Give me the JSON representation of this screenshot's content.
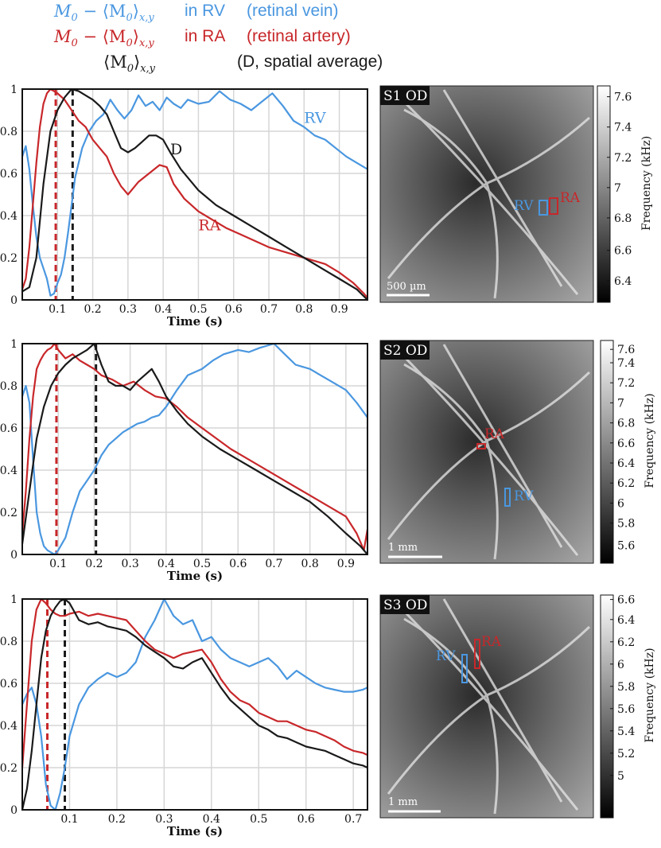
{
  "legend": {
    "rows": [
      {
        "formula_m": "M",
        "formula_sub0": "0",
        "formula_mid": " − ⟨M",
        "formula_sub1": "0",
        "formula_close": "⟩",
        "formula_sub2": "x,y",
        "location": "in RV",
        "desc": "(retinal vein)",
        "color": "#4a97e0"
      },
      {
        "formula_m": "M",
        "formula_sub0": "0",
        "formula_mid": " − ⟨M",
        "formula_sub1": "0",
        "formula_close": "⟩",
        "formula_sub2": "x,y",
        "location": "in RA",
        "desc": "(retinal artery)",
        "color": "#c8272a"
      },
      {
        "formula_m": "",
        "formula_sub0": "",
        "formula_mid": "⟨M",
        "formula_sub1": "0",
        "formula_close": "⟩",
        "formula_sub2": "x,y",
        "location": "",
        "desc": "(D, spatial average)",
        "color": "#1a1a1a"
      }
    ]
  },
  "colors": {
    "vein": "#4a97e0",
    "artery": "#c8272a",
    "average": "#1a1a1a"
  },
  "chart_data": [
    {
      "type": "line",
      "xlabel": "Time (s)",
      "xlim": [
        0,
        0.98
      ],
      "ylim": [
        0,
        1
      ],
      "xticks": [
        "0.1",
        "0.2",
        "0.3",
        "0.4",
        "0.5",
        "0.6",
        "0.7",
        "0.8",
        "0.9"
      ],
      "xtick_values": [
        0.1,
        0.2,
        0.3,
        0.4,
        0.5,
        0.6,
        0.7,
        0.8,
        0.9
      ],
      "yticks": [
        "0",
        "0.2",
        "0.4",
        "0.6",
        "0.8",
        "1"
      ],
      "ytick_values": [
        0,
        0.2,
        0.4,
        0.6,
        0.8,
        1
      ],
      "grid": true,
      "vlines": [
        {
          "x": 0.095,
          "color": "artery"
        },
        {
          "x": 0.143,
          "color": "average"
        }
      ],
      "series": [
        {
          "key": "RV",
          "name": "RV",
          "color": "vein",
          "label_at": [
            0.8,
            0.84
          ],
          "x": [
            0,
            0.01,
            0.02,
            0.03,
            0.04,
            0.05,
            0.06,
            0.07,
            0.08,
            0.09,
            0.1,
            0.11,
            0.12,
            0.13,
            0.14,
            0.15,
            0.17,
            0.19,
            0.21,
            0.23,
            0.25,
            0.27,
            0.29,
            0.31,
            0.33,
            0.35,
            0.37,
            0.39,
            0.41,
            0.43,
            0.45,
            0.47,
            0.5,
            0.53,
            0.56,
            0.59,
            0.62,
            0.65,
            0.68,
            0.71,
            0.74,
            0.77,
            0.8,
            0.83,
            0.86,
            0.89,
            0.92,
            0.95,
            0.98
          ],
          "y": [
            0.68,
            0.73,
            0.62,
            0.45,
            0.3,
            0.2,
            0.15,
            0.1,
            0.02,
            0.03,
            0.08,
            0.12,
            0.2,
            0.32,
            0.45,
            0.58,
            0.72,
            0.8,
            0.85,
            0.88,
            0.95,
            0.9,
            0.86,
            0.9,
            0.97,
            0.92,
            0.94,
            0.9,
            0.96,
            0.93,
            0.91,
            0.95,
            0.93,
            0.94,
            0.99,
            0.95,
            0.93,
            0.9,
            0.94,
            0.98,
            0.92,
            0.85,
            0.82,
            0.78,
            0.76,
            0.72,
            0.68,
            0.65,
            0.62
          ]
        },
        {
          "key": "RA",
          "name": "RA",
          "color": "artery",
          "label_at": [
            0.5,
            0.33
          ],
          "x": [
            0,
            0.01,
            0.02,
            0.03,
            0.04,
            0.05,
            0.06,
            0.07,
            0.08,
            0.09,
            0.1,
            0.12,
            0.14,
            0.16,
            0.18,
            0.2,
            0.22,
            0.24,
            0.26,
            0.28,
            0.3,
            0.33,
            0.36,
            0.39,
            0.41,
            0.43,
            0.46,
            0.5,
            0.54,
            0.58,
            0.62,
            0.66,
            0.7,
            0.74,
            0.78,
            0.82,
            0.86,
            0.9,
            0.94,
            0.97,
            0.98
          ],
          "y": [
            0.05,
            0.1,
            0.25,
            0.45,
            0.65,
            0.82,
            0.93,
            0.98,
            1.0,
            0.99,
            0.98,
            0.95,
            0.9,
            0.85,
            0.82,
            0.76,
            0.72,
            0.68,
            0.6,
            0.54,
            0.5,
            0.56,
            0.6,
            0.64,
            0.63,
            0.55,
            0.48,
            0.42,
            0.38,
            0.34,
            0.31,
            0.28,
            0.25,
            0.23,
            0.21,
            0.19,
            0.17,
            0.13,
            0.08,
            0.03,
            0.01
          ]
        },
        {
          "key": "D",
          "name": "D",
          "color": "average",
          "label_at": [
            0.42,
            0.69
          ],
          "x": [
            0,
            0.02,
            0.04,
            0.06,
            0.08,
            0.1,
            0.12,
            0.14,
            0.16,
            0.18,
            0.2,
            0.22,
            0.24,
            0.26,
            0.28,
            0.3,
            0.32,
            0.34,
            0.36,
            0.38,
            0.4,
            0.42,
            0.45,
            0.5,
            0.55,
            0.6,
            0.65,
            0.7,
            0.75,
            0.8,
            0.85,
            0.9,
            0.95,
            0.98
          ],
          "y": [
            0.04,
            0.06,
            0.2,
            0.55,
            0.8,
            0.9,
            0.96,
            1.0,
            0.99,
            0.97,
            0.95,
            0.92,
            0.88,
            0.8,
            0.72,
            0.7,
            0.72,
            0.75,
            0.78,
            0.78,
            0.76,
            0.7,
            0.62,
            0.52,
            0.45,
            0.4,
            0.35,
            0.3,
            0.25,
            0.2,
            0.15,
            0.1,
            0.05,
            0.0
          ]
        }
      ]
    },
    {
      "type": "line",
      "xlabel": "Time (s)",
      "xlim": [
        0,
        0.96
      ],
      "ylim": [
        0,
        1
      ],
      "xticks": [
        "0.1",
        "0.2",
        "0.3",
        "0.4",
        "0.5",
        "0.6",
        "0.7",
        "0.8",
        "0.9"
      ],
      "xtick_values": [
        0.1,
        0.2,
        0.3,
        0.4,
        0.5,
        0.6,
        0.7,
        0.8,
        0.9
      ],
      "yticks": [
        "0",
        "0.2",
        "0.4",
        "0.6",
        "0.8",
        "1"
      ],
      "ytick_values": [
        0,
        0.2,
        0.4,
        0.6,
        0.8,
        1
      ],
      "grid": true,
      "vlines": [
        {
          "x": 0.095,
          "color": "artery"
        },
        {
          "x": 0.205,
          "color": "average"
        }
      ],
      "series": [
        {
          "key": "RV",
          "name": "",
          "color": "vein",
          "x": [
            0,
            0.01,
            0.02,
            0.03,
            0.04,
            0.05,
            0.06,
            0.07,
            0.08,
            0.09,
            0.1,
            0.12,
            0.14,
            0.16,
            0.18,
            0.2,
            0.22,
            0.24,
            0.26,
            0.28,
            0.3,
            0.32,
            0.34,
            0.36,
            0.38,
            0.4,
            0.43,
            0.46,
            0.5,
            0.53,
            0.56,
            0.6,
            0.63,
            0.66,
            0.7,
            0.73,
            0.76,
            0.8,
            0.83,
            0.86,
            0.9,
            0.93,
            0.96
          ],
          "y": [
            0.75,
            0.8,
            0.72,
            0.45,
            0.2,
            0.1,
            0.04,
            0.02,
            0.01,
            0.0,
            0.02,
            0.08,
            0.2,
            0.3,
            0.35,
            0.4,
            0.47,
            0.52,
            0.55,
            0.58,
            0.6,
            0.62,
            0.63,
            0.65,
            0.66,
            0.7,
            0.78,
            0.85,
            0.88,
            0.92,
            0.95,
            0.97,
            0.96,
            0.98,
            1.0,
            0.95,
            0.9,
            0.88,
            0.85,
            0.82,
            0.78,
            0.72,
            0.65
          ]
        },
        {
          "key": "RA",
          "name": "",
          "color": "artery",
          "x": [
            0,
            0.01,
            0.02,
            0.03,
            0.04,
            0.05,
            0.06,
            0.07,
            0.08,
            0.09,
            0.1,
            0.12,
            0.14,
            0.16,
            0.18,
            0.2,
            0.22,
            0.25,
            0.28,
            0.31,
            0.34,
            0.37,
            0.4,
            0.43,
            0.46,
            0.5,
            0.54,
            0.58,
            0.62,
            0.66,
            0.7,
            0.74,
            0.78,
            0.82,
            0.86,
            0.9,
            0.93,
            0.95,
            0.96
          ],
          "y": [
            0.1,
            0.3,
            0.55,
            0.75,
            0.88,
            0.92,
            0.95,
            0.97,
            0.98,
            1.0,
            0.97,
            0.93,
            0.95,
            0.92,
            0.9,
            0.88,
            0.85,
            0.83,
            0.8,
            0.82,
            0.78,
            0.75,
            0.74,
            0.7,
            0.65,
            0.6,
            0.55,
            0.5,
            0.46,
            0.42,
            0.38,
            0.34,
            0.3,
            0.26,
            0.22,
            0.18,
            0.1,
            0.02,
            0.12
          ]
        },
        {
          "key": "D",
          "name": "",
          "color": "average",
          "x": [
            0,
            0.02,
            0.04,
            0.06,
            0.08,
            0.1,
            0.12,
            0.14,
            0.16,
            0.18,
            0.2,
            0.22,
            0.24,
            0.26,
            0.28,
            0.3,
            0.32,
            0.34,
            0.36,
            0.38,
            0.4,
            0.43,
            0.46,
            0.5,
            0.55,
            0.6,
            0.65,
            0.7,
            0.75,
            0.8,
            0.85,
            0.9,
            0.94,
            0.96
          ],
          "y": [
            0.05,
            0.3,
            0.55,
            0.7,
            0.8,
            0.86,
            0.9,
            0.93,
            0.95,
            0.97,
            1.0,
            0.9,
            0.82,
            0.8,
            0.8,
            0.78,
            0.82,
            0.85,
            0.88,
            0.82,
            0.75,
            0.68,
            0.62,
            0.56,
            0.5,
            0.45,
            0.4,
            0.35,
            0.3,
            0.25,
            0.18,
            0.1,
            0.04,
            0.0
          ]
        }
      ]
    },
    {
      "type": "line",
      "xlabel": "Time (s)",
      "xlim": [
        0,
        0.73
      ],
      "ylim": [
        0,
        1
      ],
      "xticks": [
        "0.1",
        "0.2",
        "0.3",
        "0.4",
        "0.5",
        "0.6",
        "0.7"
      ],
      "xtick_values": [
        0.1,
        0.2,
        0.3,
        0.4,
        0.5,
        0.6,
        0.7
      ],
      "yticks": [
        "0",
        "0.2",
        "0.4",
        "0.6",
        "0.8",
        "1"
      ],
      "ytick_values": [
        0,
        0.2,
        0.4,
        0.6,
        0.8,
        1
      ],
      "grid": true,
      "vlines": [
        {
          "x": 0.053,
          "color": "artery"
        },
        {
          "x": 0.09,
          "color": "average"
        }
      ],
      "series": [
        {
          "key": "RV",
          "name": "",
          "color": "vein",
          "x": [
            0,
            0.01,
            0.02,
            0.03,
            0.04,
            0.05,
            0.06,
            0.07,
            0.08,
            0.09,
            0.1,
            0.12,
            0.14,
            0.16,
            0.18,
            0.2,
            0.22,
            0.24,
            0.26,
            0.28,
            0.3,
            0.32,
            0.34,
            0.36,
            0.38,
            0.4,
            0.42,
            0.44,
            0.46,
            0.48,
            0.5,
            0.52,
            0.54,
            0.56,
            0.58,
            0.6,
            0.62,
            0.64,
            0.66,
            0.68,
            0.7,
            0.72,
            0.73
          ],
          "y": [
            0.5,
            0.55,
            0.58,
            0.5,
            0.35,
            0.12,
            0.02,
            0.0,
            0.08,
            0.2,
            0.35,
            0.5,
            0.58,
            0.62,
            0.65,
            0.63,
            0.65,
            0.7,
            0.82,
            0.9,
            1.0,
            0.92,
            0.88,
            0.9,
            0.8,
            0.82,
            0.76,
            0.72,
            0.7,
            0.68,
            0.7,
            0.72,
            0.68,
            0.62,
            0.66,
            0.63,
            0.6,
            0.58,
            0.57,
            0.56,
            0.56,
            0.57,
            0.58
          ]
        },
        {
          "key": "RA",
          "name": "",
          "color": "artery",
          "x": [
            0,
            0.01,
            0.02,
            0.03,
            0.04,
            0.05,
            0.06,
            0.07,
            0.08,
            0.09,
            0.1,
            0.12,
            0.14,
            0.16,
            0.18,
            0.2,
            0.22,
            0.24,
            0.26,
            0.28,
            0.3,
            0.32,
            0.34,
            0.36,
            0.38,
            0.4,
            0.42,
            0.44,
            0.46,
            0.48,
            0.5,
            0.52,
            0.54,
            0.56,
            0.58,
            0.6,
            0.62,
            0.64,
            0.66,
            0.68,
            0.7,
            0.72,
            0.73
          ],
          "y": [
            0.2,
            0.5,
            0.8,
            0.95,
            1.0,
            0.98,
            0.95,
            0.93,
            0.92,
            0.92,
            0.93,
            0.94,
            0.92,
            0.93,
            0.92,
            0.91,
            0.9,
            0.85,
            0.8,
            0.76,
            0.74,
            0.72,
            0.74,
            0.75,
            0.76,
            0.7,
            0.62,
            0.56,
            0.52,
            0.5,
            0.46,
            0.44,
            0.42,
            0.42,
            0.4,
            0.38,
            0.37,
            0.35,
            0.33,
            0.3,
            0.28,
            0.27,
            0.26
          ]
        },
        {
          "key": "D",
          "name": "",
          "color": "average",
          "x": [
            0,
            0.01,
            0.02,
            0.03,
            0.04,
            0.05,
            0.06,
            0.07,
            0.08,
            0.09,
            0.1,
            0.12,
            0.14,
            0.16,
            0.18,
            0.2,
            0.22,
            0.24,
            0.26,
            0.28,
            0.3,
            0.32,
            0.34,
            0.36,
            0.38,
            0.4,
            0.42,
            0.44,
            0.46,
            0.48,
            0.5,
            0.52,
            0.54,
            0.56,
            0.58,
            0.6,
            0.62,
            0.64,
            0.66,
            0.68,
            0.7,
            0.72,
            0.73
          ],
          "y": [
            0.0,
            0.1,
            0.28,
            0.5,
            0.72,
            0.85,
            0.92,
            0.96,
            0.99,
            1.0,
            0.98,
            0.9,
            0.88,
            0.89,
            0.87,
            0.86,
            0.85,
            0.82,
            0.78,
            0.75,
            0.72,
            0.68,
            0.67,
            0.7,
            0.72,
            0.65,
            0.58,
            0.52,
            0.48,
            0.44,
            0.4,
            0.38,
            0.35,
            0.34,
            0.32,
            0.3,
            0.29,
            0.28,
            0.26,
            0.24,
            0.22,
            0.21,
            0.2
          ]
        }
      ]
    }
  ],
  "images": [
    {
      "label": "S1 OD",
      "scalebar": "500 µm",
      "colorbar_title": "Frequency (kHz)",
      "colorbar_ticks": [
        "7.6",
        "7.4",
        "7.2",
        "7",
        "6.8",
        "6.6",
        "6.4"
      ],
      "roi": [
        {
          "name": "RV",
          "color": "vein"
        },
        {
          "name": "RA",
          "color": "artery"
        }
      ]
    },
    {
      "label": "S2 OD",
      "scalebar": "1 mm",
      "colorbar_title": "Frequency (kHz)",
      "colorbar_ticks": [
        "7.6",
        "7.4",
        "7.2",
        "7",
        "6.8",
        "6.6",
        "6.4",
        "6.2",
        "6",
        "5.8",
        "5.6"
      ],
      "roi": [
        {
          "name": "RA",
          "color": "artery"
        },
        {
          "name": "RV",
          "color": "vein"
        }
      ]
    },
    {
      "label": "S3 OD",
      "scalebar": "1 mm",
      "colorbar_title": "Frequency (kHz)",
      "colorbar_ticks": [
        "6.6",
        "6.4",
        "6.2",
        "6",
        "5.8",
        "5.6",
        "5.4",
        "5.2",
        "5"
      ],
      "roi": [
        {
          "name": "RA",
          "color": "artery"
        },
        {
          "name": "RV",
          "color": "vein"
        }
      ]
    }
  ]
}
